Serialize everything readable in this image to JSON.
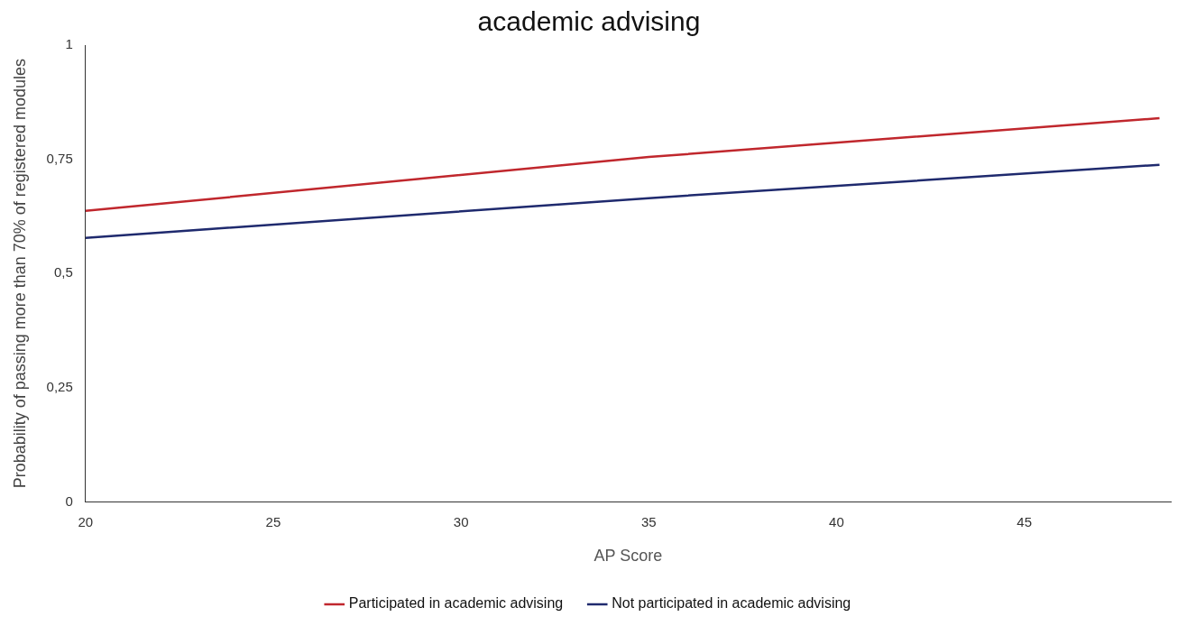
{
  "chart_data": {
    "type": "line",
    "title": "academic advising",
    "xlabel": "AP Score",
    "ylabel": "Probability of passing more than 70% of registered modules",
    "series": [
      {
        "name": "Participated in academic advising",
        "color": "#c0272d",
        "x": [
          20,
          35,
          48.6
        ],
        "values": [
          0.637,
          0.755,
          0.84
        ]
      },
      {
        "name": "Not participated in academic advising",
        "color": "#1f2a6e",
        "x": [
          20,
          35,
          48.6
        ],
        "values": [
          0.578,
          0.665,
          0.738
        ]
      }
    ],
    "xlim": [
      20,
      48.9
    ],
    "xticks": [
      20,
      25,
      30,
      35,
      40,
      45
    ],
    "ylim": [
      0,
      1
    ],
    "yticks": [
      0,
      {
        "value": 0.25,
        "label": "0,25"
      },
      {
        "value": 0.5,
        "label": "0,5"
      },
      {
        "value": 0.75,
        "label": "0,75"
      },
      1
    ],
    "grid": false,
    "legend": "bottom",
    "marker": "none",
    "line_style": "solid"
  }
}
